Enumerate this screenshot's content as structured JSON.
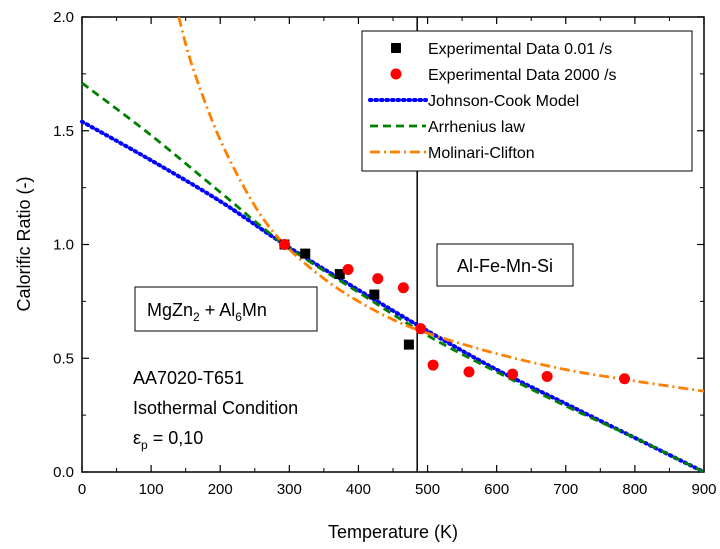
{
  "chart_data": {
    "type": "scatter",
    "title": "",
    "xlabel": "Temperature (K)",
    "ylabel": "Calorific Ratio (-)",
    "xlim": [
      0,
      900
    ],
    "ylim": [
      0,
      2
    ],
    "xticks": [
      "0",
      "100",
      "200",
      "300",
      "400",
      "500",
      "600",
      "700",
      "800",
      "900"
    ],
    "yticks": [
      "0.0",
      "0.5",
      "1.0",
      "1.5",
      "2.0"
    ],
    "grid": false,
    "legend_position": "top-right",
    "vertical_line_x": 485,
    "series": [
      {
        "name": "Experimental Data 0.01 /s",
        "kind": "markers",
        "marker": "square",
        "color": "#000000",
        "x": [
          293,
          323,
          373,
          423,
          473
        ],
        "y": [
          1.0,
          0.96,
          0.87,
          0.78,
          0.56
        ]
      },
      {
        "name": "Experimental Data 2000 /s",
        "kind": "markers",
        "marker": "circle",
        "color": "#ff0000",
        "x": [
          293,
          385,
          428,
          465,
          490,
          508,
          560,
          623,
          673,
          785
        ],
        "y": [
          1.0,
          0.89,
          0.85,
          0.81,
          0.63,
          0.47,
          0.44,
          0.43,
          0.42,
          0.41
        ]
      },
      {
        "name": "Johnson-Cook Model",
        "kind": "line",
        "dash": "dotted",
        "color": "#0000ff",
        "x": [
          0,
          100,
          200,
          293,
          400,
          500,
          600,
          700,
          800,
          900
        ],
        "y": [
          1.54,
          1.37,
          1.19,
          1.0,
          0.8,
          0.62,
          0.45,
          0.3,
          0.15,
          0.0
        ]
      },
      {
        "name": "Arrhenius law",
        "kind": "line",
        "dash": "dashed",
        "color": "#008000",
        "x": [
          0,
          100,
          200,
          293,
          400,
          500,
          600,
          700,
          800,
          900
        ],
        "y": [
          1.71,
          1.48,
          1.23,
          1.0,
          0.79,
          0.6,
          0.44,
          0.29,
          0.15,
          0.0
        ]
      },
      {
        "name": "Molinari-Clifton",
        "kind": "line",
        "dash": "dash-dot",
        "color": "#ff8000",
        "x": [
          140,
          160,
          200,
          250,
          293,
          350,
          400,
          450,
          500,
          600,
          700,
          800,
          900
        ],
        "y": [
          2.0,
          1.78,
          1.46,
          1.17,
          1.0,
          0.85,
          0.75,
          0.67,
          0.61,
          0.52,
          0.45,
          0.4,
          0.355
        ]
      }
    ],
    "annotations": {
      "phase_right": "Al-Fe-Mn-Si",
      "alloy": "AA7020-T651",
      "condition": "Isothermal Condition",
      "strain_symbol": "ε",
      "strain_sub": "p",
      "strain_value": " = 0,10"
    }
  }
}
